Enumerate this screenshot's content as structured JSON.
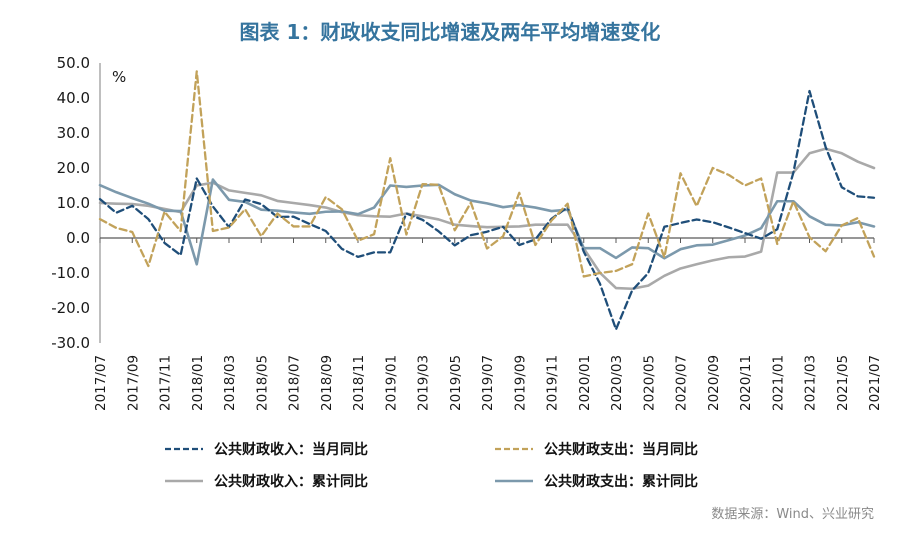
{
  "title": "图表 1：财政收支同比增速及两年平均增速变化",
  "source": "数据来源：Wind、兴业研究",
  "title_color": "#35749E",
  "chart_data": {
    "type": "line",
    "title": "图表 1：财政收支同比增速及两年平均增速变化",
    "unit": "%",
    "xlabel": "",
    "ylabel": "%",
    "ylim": [
      -30,
      50
    ],
    "y_ticks": [
      50,
      40,
      30,
      20,
      10,
      0,
      -10,
      -20,
      -30
    ],
    "grid": false,
    "legend_position": "bottom",
    "x": [
      "2017/07",
      "2017/08",
      "2017/09",
      "2017/10",
      "2017/11",
      "2017/12",
      "2018/01",
      "2018/02",
      "2018/03",
      "2018/04",
      "2018/05",
      "2018/06",
      "2018/07",
      "2018/08",
      "2018/09",
      "2018/10",
      "2018/11",
      "2018/12",
      "2019/01",
      "2019/02",
      "2019/03",
      "2019/04",
      "2019/05",
      "2019/06",
      "2019/07",
      "2019/08",
      "2019/09",
      "2019/10",
      "2019/11",
      "2019/12",
      "2020/01",
      "2020/02",
      "2020/03",
      "2020/04",
      "2020/05",
      "2020/06",
      "2020/07",
      "2020/08",
      "2020/09",
      "2020/10",
      "2020/11",
      "2020/12",
      "2021/01",
      "2021/02",
      "2021/03",
      "2021/04",
      "2021/05",
      "2021/06",
      "2021/07"
    ],
    "x_tick_labels": [
      "2017/07",
      "2017/09",
      "2017/11",
      "2018/01",
      "2018/03",
      "2018/05",
      "2018/07",
      "2018/09",
      "2018/11",
      "2019/01",
      "2019/03",
      "2019/05",
      "2019/07",
      "2019/09",
      "2019/11",
      "2020/01",
      "2020/03",
      "2020/05",
      "2020/07",
      "2020/09",
      "2020/11",
      "2021/01",
      "2021/03",
      "2021/05",
      "2021/07"
    ],
    "series": [
      {
        "name": "公共财政收入：当月同比",
        "style": "dashed",
        "color": "#1F4E79",
        "values": [
          11.1,
          7.2,
          9.2,
          5.4,
          -1.4,
          -4.9,
          17.0,
          9.0,
          3.1,
          11.0,
          9.7,
          6.0,
          6.1,
          4.0,
          2.0,
          -3.1,
          -5.4,
          -4.1,
          -4.1,
          7.0,
          5.2,
          1.9,
          -2.1,
          0.8,
          1.8,
          3.2,
          -2.0,
          -0.4,
          5.5,
          8.8,
          -3.9,
          -13.0,
          -26.1,
          -15.0,
          -10.0,
          3.2,
          4.3,
          5.3,
          4.5,
          3.0,
          1.4,
          -0.2,
          2.5,
          18.7,
          42.0,
          26.0,
          14.5,
          11.9,
          11.5
        ]
      },
      {
        "name": "公共财政支出：当月同比",
        "style": "dashed",
        "color": "#C2A25A",
        "values": [
          5.4,
          2.9,
          1.7,
          -8.0,
          7.5,
          2.0,
          47.6,
          2.0,
          3.0,
          8.2,
          0.5,
          7.0,
          3.3,
          3.3,
          11.7,
          8.2,
          -0.8,
          1.1,
          22.8,
          1.0,
          15.4,
          15.2,
          2.2,
          10.1,
          -3.0,
          0.5,
          12.9,
          -2.0,
          5.0,
          9.8,
          -11.0,
          -10.0,
          -9.4,
          -7.5,
          7.0,
          -5.5,
          18.5,
          9.1,
          20.0,
          18.0,
          15.0,
          17.0,
          -1.7,
          10.5,
          0.2,
          -3.8,
          3.6,
          5.7,
          -5.3
        ]
      },
      {
        "name": "公共财政收入：累计同比",
        "style": "solid",
        "color": "#A9A9A9",
        "values": [
          10.0,
          9.8,
          9.7,
          9.2,
          8.3,
          7.4,
          15.0,
          15.8,
          13.6,
          12.9,
          12.2,
          10.6,
          10.0,
          9.4,
          8.7,
          7.4,
          6.5,
          6.2,
          6.1,
          7.0,
          6.2,
          5.3,
          3.8,
          3.4,
          3.1,
          3.2,
          3.3,
          3.8,
          3.8,
          3.8,
          -3.0,
          -9.9,
          -14.3,
          -14.5,
          -13.6,
          -10.8,
          -8.7,
          -7.5,
          -6.4,
          -5.5,
          -5.3,
          -3.9,
          18.7,
          18.7,
          24.2,
          25.5,
          24.2,
          21.8,
          20.0
        ]
      },
      {
        "name": "公共财政支出：累计同比",
        "style": "solid",
        "color": "#7C99AC",
        "values": [
          15.1,
          13.1,
          11.4,
          9.8,
          7.8,
          7.7,
          -7.5,
          16.7,
          10.9,
          10.3,
          8.1,
          7.8,
          7.3,
          6.9,
          7.5,
          7.6,
          6.8,
          8.7,
          15.0,
          14.6,
          15.0,
          15.2,
          12.5,
          10.7,
          9.9,
          8.8,
          9.4,
          8.7,
          7.7,
          8.1,
          -2.9,
          -2.9,
          -5.7,
          -2.7,
          -2.9,
          -5.8,
          -3.2,
          -2.1,
          -1.9,
          -0.6,
          0.7,
          2.8,
          10.5,
          10.5,
          6.2,
          3.8,
          3.6,
          4.5,
          3.3
        ]
      }
    ]
  }
}
